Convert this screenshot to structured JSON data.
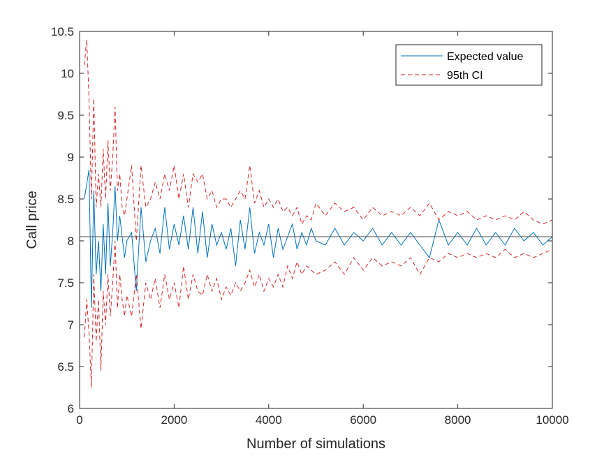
{
  "chart_data": {
    "type": "line",
    "title": "",
    "xlabel": "Number of simulations",
    "ylabel": "Call price",
    "xlim": [
      0,
      10000
    ],
    "ylim": [
      6,
      10.5
    ],
    "xticks": [
      0,
      2000,
      4000,
      6000,
      8000,
      10000
    ],
    "yticks": [
      6,
      6.5,
      7,
      7.5,
      8,
      8.5,
      9,
      9.5,
      10,
      10.5
    ],
    "grid": false,
    "legend_position": "top-right",
    "reference_line": {
      "y": 8.05,
      "color": "#4a4a4a"
    },
    "series": [
      {
        "name": "Expected value",
        "style": "solid",
        "color": "#0072bd",
        "x": [
          100,
          200,
          250,
          300,
          350,
          400,
          450,
          500,
          550,
          600,
          650,
          700,
          750,
          800,
          850,
          900,
          950,
          1000,
          1100,
          1200,
          1300,
          1400,
          1500,
          1600,
          1700,
          1800,
          1900,
          2000,
          2100,
          2200,
          2300,
          2400,
          2500,
          2600,
          2700,
          2800,
          2900,
          3000,
          3100,
          3200,
          3300,
          3400,
          3500,
          3600,
          3700,
          3800,
          3900,
          4000,
          4100,
          4200,
          4300,
          4400,
          4500,
          4600,
          4700,
          4800,
          4900,
          5000,
          5200,
          5400,
          5600,
          5800,
          6000,
          6200,
          6400,
          6600,
          6800,
          7000,
          7200,
          7400,
          7600,
          7800,
          8000,
          8200,
          8400,
          8600,
          8800,
          9000,
          9200,
          9400,
          9600,
          9800,
          10000
        ],
        "y": [
          8.5,
          8.85,
          7.2,
          8.6,
          7.6,
          8.0,
          7.4,
          8.2,
          7.6,
          8.45,
          7.7,
          8.1,
          8.65,
          8.0,
          8.3,
          8.05,
          7.8,
          8.0,
          8.1,
          7.4,
          8.4,
          7.75,
          8.0,
          8.15,
          7.85,
          8.4,
          7.9,
          8.2,
          7.95,
          8.3,
          7.9,
          8.4,
          7.85,
          8.35,
          7.8,
          8.2,
          7.95,
          8.1,
          7.9,
          8.15,
          7.7,
          8.25,
          7.9,
          8.4,
          7.85,
          8.1,
          7.95,
          8.2,
          7.8,
          8.15,
          7.9,
          8.05,
          8.2,
          7.9,
          8.1,
          7.95,
          8.15,
          8.0,
          7.95,
          8.15,
          7.95,
          8.1,
          8.0,
          8.15,
          7.95,
          8.1,
          7.95,
          8.1,
          7.95,
          7.8,
          8.25,
          7.95,
          8.1,
          7.95,
          8.15,
          7.95,
          8.1,
          7.95,
          8.15,
          8.0,
          8.1,
          7.95,
          8.05
        ]
      },
      {
        "name": "95th CI",
        "style": "dashed",
        "color": "#d62728",
        "x": [
          100,
          150,
          200,
          250,
          300,
          350,
          400,
          450,
          500,
          550,
          600,
          650,
          700,
          750,
          800,
          850,
          900,
          950,
          1000,
          1100,
          1200,
          1300,
          1400,
          1500,
          1600,
          1700,
          1800,
          1900,
          2000,
          2100,
          2200,
          2300,
          2400,
          2500,
          2600,
          2700,
          2800,
          2900,
          3000,
          3100,
          3200,
          3300,
          3400,
          3500,
          3600,
          3700,
          3800,
          3900,
          4000,
          4100,
          4200,
          4300,
          4400,
          4500,
          4600,
          4700,
          4800,
          4900,
          5000,
          5200,
          5400,
          5600,
          5800,
          6000,
          6200,
          6400,
          6600,
          6800,
          7000,
          7200,
          7400,
          7600,
          7800,
          8000,
          8200,
          8400,
          8600,
          8800,
          9000,
          9200,
          9400,
          9600,
          9800,
          10000
        ],
        "y": [
          10.1,
          10.4,
          9.7,
          8.5,
          9.7,
          8.4,
          8.8,
          8.4,
          9.1,
          8.5,
          9.2,
          8.6,
          9.0,
          9.6,
          8.6,
          8.8,
          8.4,
          8.3,
          8.5,
          8.9,
          8.0,
          8.9,
          8.4,
          8.5,
          8.7,
          8.5,
          8.8,
          8.6,
          8.9,
          8.5,
          8.8,
          8.4,
          8.8,
          8.7,
          8.8,
          8.5,
          8.6,
          8.4,
          8.5,
          8.5,
          8.4,
          8.5,
          8.6,
          8.5,
          8.9,
          8.45,
          8.6,
          8.4,
          8.5,
          8.4,
          8.5,
          8.35,
          8.4,
          8.3,
          8.4,
          8.2,
          8.3,
          8.25,
          8.45,
          8.3,
          8.45,
          8.35,
          8.4,
          8.25,
          8.4,
          8.3,
          8.35,
          8.3,
          8.4,
          8.3,
          8.45,
          8.25,
          8.35,
          8.3,
          8.35,
          8.25,
          8.3,
          8.25,
          8.3,
          8.25,
          8.35,
          8.25,
          8.2,
          8.25
        ]
      },
      {
        "name": "",
        "style": "dashed",
        "color": "#d62728",
        "x": [
          100,
          150,
          200,
          250,
          300,
          350,
          400,
          450,
          500,
          550,
          600,
          650,
          700,
          750,
          800,
          850,
          900,
          950,
          1000,
          1100,
          1200,
          1300,
          1400,
          1500,
          1600,
          1700,
          1800,
          1900,
          2000,
          2100,
          2200,
          2300,
          2400,
          2500,
          2600,
          2700,
          2800,
          2900,
          3000,
          3100,
          3200,
          3300,
          3400,
          3500,
          3600,
          3700,
          3800,
          3900,
          4000,
          4100,
          4200,
          4300,
          4400,
          4500,
          4600,
          4700,
          4800,
          4900,
          5000,
          5200,
          5400,
          5600,
          5800,
          6000,
          6200,
          6400,
          6600,
          6800,
          7000,
          7200,
          7400,
          7600,
          7800,
          8000,
          8200,
          8400,
          8600,
          8800,
          9000,
          9200,
          9400,
          9600,
          9800,
          10000
        ],
        "y": [
          6.85,
          7.3,
          6.9,
          6.25,
          7.6,
          6.8,
          7.3,
          6.45,
          7.4,
          7.0,
          7.6,
          7.1,
          7.5,
          8.0,
          7.2,
          7.6,
          7.3,
          7.1,
          7.35,
          7.1,
          7.6,
          6.95,
          7.5,
          7.3,
          7.55,
          7.2,
          7.6,
          7.3,
          7.5,
          7.2,
          7.7,
          7.3,
          7.6,
          7.4,
          7.35,
          7.6,
          7.4,
          7.55,
          7.3,
          7.45,
          7.35,
          7.5,
          7.4,
          7.5,
          7.65,
          7.45,
          7.6,
          7.4,
          7.55,
          7.45,
          7.6,
          7.45,
          7.7,
          7.55,
          7.75,
          7.6,
          7.7,
          7.65,
          7.6,
          7.65,
          7.75,
          7.6,
          7.8,
          7.65,
          7.8,
          7.7,
          7.75,
          7.7,
          7.8,
          7.6,
          7.8,
          7.75,
          7.85,
          7.8,
          7.85,
          7.8,
          7.85,
          7.8,
          7.9,
          7.8,
          7.85,
          7.8,
          7.85,
          7.9
        ]
      }
    ]
  }
}
